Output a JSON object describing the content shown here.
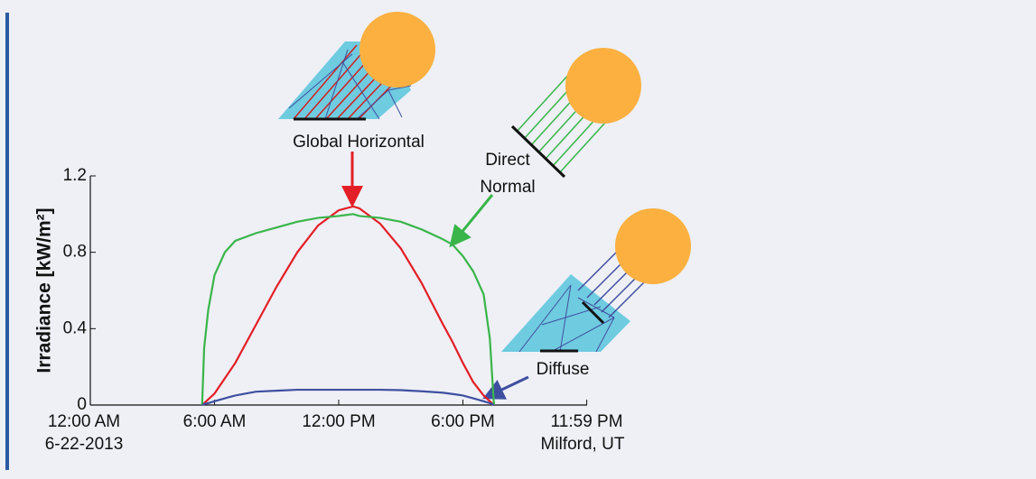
{
  "chart_data": {
    "type": "line",
    "y_label": "Irradiance [kW/m²]",
    "x": [
      5.4,
      5.5,
      5.7,
      6,
      6.5,
      7,
      8,
      9,
      10,
      11,
      12,
      12.7,
      13,
      14,
      15,
      16,
      17,
      17.5,
      18,
      18.5,
      19,
      19.3,
      19.5
    ],
    "series": [
      {
        "name": "Global Horizontal",
        "color": "#e41e26",
        "values": [
          0,
          0.01,
          0.03,
          0.06,
          0.14,
          0.22,
          0.42,
          0.62,
          0.8,
          0.94,
          1.02,
          1.04,
          1.03,
          0.95,
          0.82,
          0.64,
          0.43,
          0.33,
          0.22,
          0.12,
          0.05,
          0.02,
          0
        ]
      },
      {
        "name": "Direct Normal",
        "color": "#39b54a",
        "values": [
          0,
          0.3,
          0.5,
          0.68,
          0.8,
          0.86,
          0.9,
          0.93,
          0.96,
          0.98,
          0.99,
          1.0,
          0.99,
          0.98,
          0.96,
          0.92,
          0.87,
          0.84,
          0.78,
          0.7,
          0.58,
          0.35,
          0
        ]
      },
      {
        "name": "Diffuse",
        "color": "#3f4fa0",
        "values": [
          0,
          0.005,
          0.01,
          0.02,
          0.035,
          0.05,
          0.07,
          0.075,
          0.08,
          0.08,
          0.08,
          0.08,
          0.08,
          0.08,
          0.078,
          0.072,
          0.065,
          0.058,
          0.05,
          0.035,
          0.02,
          0.01,
          0
        ]
      }
    ],
    "xlim": [
      0,
      24
    ],
    "xticks": [
      {
        "value": 0,
        "label": "12:00 AM"
      },
      {
        "value": 6,
        "label": "6:00 AM"
      },
      {
        "value": 12,
        "label": "12:00 PM"
      },
      {
        "value": 18,
        "label": "6:00 PM"
      },
      {
        "value": 23.983,
        "label": "11:59 PM"
      }
    ],
    "ylim": [
      0,
      1.2
    ],
    "yticks": [
      0,
      0.4,
      0.8,
      1.2
    ],
    "annotations": [
      "6-22-2013",
      "Milford, UT"
    ]
  }
}
